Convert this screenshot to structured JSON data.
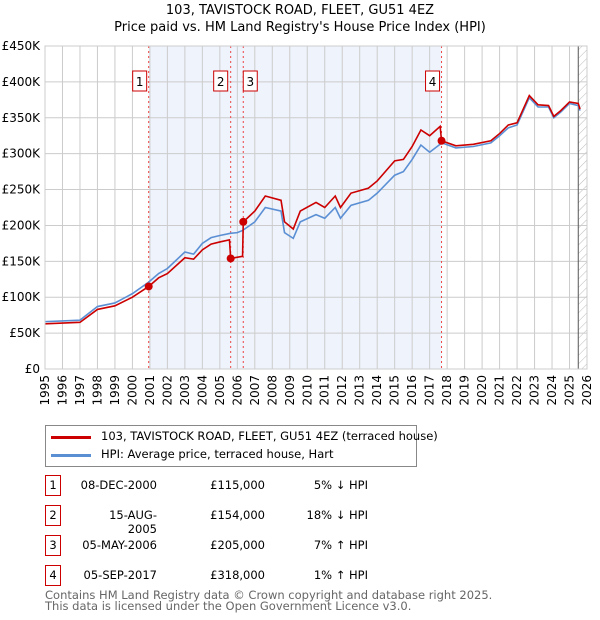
{
  "title_line1": "103, TAVISTOCK ROAD, FLEET, GU51 4EZ",
  "title_line2": "Price paid vs. HM Land Registry's House Price Index (HPI)",
  "chart_data": {
    "type": "line",
    "xlim": [
      1995,
      2026
    ],
    "ylim": [
      0,
      450000
    ],
    "x_ticks": [
      1995,
      1996,
      1997,
      1998,
      1999,
      2000,
      2001,
      2002,
      2003,
      2004,
      2005,
      2006,
      2007,
      2008,
      2009,
      2010,
      2011,
      2012,
      2013,
      2014,
      2015,
      2016,
      2017,
      2018,
      2019,
      2020,
      2021,
      2022,
      2023,
      2024,
      2025,
      2026
    ],
    "y_ticks": [
      {
        "v": 0,
        "label": "£0"
      },
      {
        "v": 50000,
        "label": "£50K"
      },
      {
        "v": 100000,
        "label": "£100K"
      },
      {
        "v": 150000,
        "label": "£150K"
      },
      {
        "v": 200000,
        "label": "£200K"
      },
      {
        "v": 250000,
        "label": "£250K"
      },
      {
        "v": 300000,
        "label": "£300K"
      },
      {
        "v": 350000,
        "label": "£350K"
      },
      {
        "v": 400000,
        "label": "£400K"
      },
      {
        "v": 450000,
        "label": "£450K"
      }
    ],
    "grid": true,
    "shaded_range": [
      2000.93,
      2017.68
    ],
    "forecast_hatch_from": 2025.5,
    "series": [
      {
        "name": "103, TAVISTOCK ROAD, FLEET, GU51 4EZ (terraced house)",
        "color": "#cc0000",
        "points": [
          [
            1995,
            63
          ],
          [
            1996,
            64
          ],
          [
            1997,
            65
          ],
          [
            1998,
            83
          ],
          [
            1999,
            88
          ],
          [
            2000,
            100
          ],
          [
            2000.93,
            115
          ],
          [
            2001.5,
            127
          ],
          [
            2002,
            133
          ],
          [
            2003,
            155
          ],
          [
            2003.5,
            153
          ],
          [
            2004,
            166
          ],
          [
            2004.5,
            174
          ],
          [
            2005,
            177
          ],
          [
            2005.55,
            180
          ],
          [
            2005.62,
            154
          ],
          [
            2006.3,
            157
          ],
          [
            2006.34,
            205
          ],
          [
            2007,
            220
          ],
          [
            2007.6,
            241
          ],
          [
            2008.5,
            235
          ],
          [
            2008.7,
            205
          ],
          [
            2009.2,
            195
          ],
          [
            2009.6,
            220
          ],
          [
            2010.5,
            232
          ],
          [
            2011,
            225
          ],
          [
            2011.6,
            241
          ],
          [
            2011.9,
            225
          ],
          [
            2012.5,
            245
          ],
          [
            2013.5,
            252
          ],
          [
            2014,
            262
          ],
          [
            2015,
            290
          ],
          [
            2015.5,
            292
          ],
          [
            2016,
            310
          ],
          [
            2016.5,
            333
          ],
          [
            2017,
            325
          ],
          [
            2017.6,
            338
          ],
          [
            2017.68,
            318
          ],
          [
            2018.5,
            311
          ],
          [
            2019.5,
            313
          ],
          [
            2020.5,
            318
          ],
          [
            2021,
            328
          ],
          [
            2021.5,
            340
          ],
          [
            2022,
            343
          ],
          [
            2022.7,
            381
          ],
          [
            2023.2,
            368
          ],
          [
            2023.8,
            367
          ],
          [
            2024.1,
            352
          ],
          [
            2024.5,
            360
          ],
          [
            2025,
            372
          ],
          [
            2025.5,
            370
          ],
          [
            2025.6,
            362
          ]
        ]
      },
      {
        "name": "HPI: Average price, terraced house, Hart",
        "color": "#5b8fd4",
        "points": [
          [
            1995,
            66
          ],
          [
            1996,
            67
          ],
          [
            1997,
            68
          ],
          [
            1998,
            87
          ],
          [
            1999,
            92
          ],
          [
            2000,
            105
          ],
          [
            2000.93,
            121
          ],
          [
            2001.5,
            133
          ],
          [
            2002,
            140
          ],
          [
            2003,
            163
          ],
          [
            2003.5,
            160
          ],
          [
            2004,
            175
          ],
          [
            2004.5,
            183
          ],
          [
            2005,
            186
          ],
          [
            2005.6,
            189
          ],
          [
            2006,
            190
          ],
          [
            2006.3,
            193
          ],
          [
            2007,
            205
          ],
          [
            2007.6,
            225
          ],
          [
            2008.5,
            220
          ],
          [
            2008.7,
            190
          ],
          [
            2009.2,
            182
          ],
          [
            2009.6,
            205
          ],
          [
            2010.5,
            215
          ],
          [
            2011,
            210
          ],
          [
            2011.6,
            225
          ],
          [
            2011.9,
            210
          ],
          [
            2012.5,
            228
          ],
          [
            2013.5,
            235
          ],
          [
            2014,
            245
          ],
          [
            2015,
            270
          ],
          [
            2015.5,
            275
          ],
          [
            2016,
            292
          ],
          [
            2016.5,
            312
          ],
          [
            2017,
            302
          ],
          [
            2017.7,
            315
          ],
          [
            2018.5,
            308
          ],
          [
            2019.5,
            310
          ],
          [
            2020.5,
            315
          ],
          [
            2021,
            325
          ],
          [
            2021.5,
            336
          ],
          [
            2022,
            340
          ],
          [
            2022.7,
            378
          ],
          [
            2023.2,
            365
          ],
          [
            2023.8,
            365
          ],
          [
            2024.1,
            350
          ],
          [
            2024.5,
            358
          ],
          [
            2025,
            370
          ],
          [
            2025.5,
            367
          ],
          [
            2025.6,
            360
          ]
        ]
      }
    ],
    "sales": [
      {
        "n": "1",
        "x": 2000.93,
        "price": 115000,
        "date": "08-DEC-2000",
        "price_label": "£115,000",
        "hpi": "5% ↓ HPI"
      },
      {
        "n": "2",
        "x": 2005.62,
        "price": 154000,
        "date": "15-AUG-2005",
        "price_label": "£154,000",
        "hpi": "18% ↓ HPI"
      },
      {
        "n": "3",
        "x": 2006.34,
        "price": 205000,
        "date": "05-MAY-2006",
        "price_label": "£205,000",
        "hpi": "7% ↑ HPI"
      },
      {
        "n": "4",
        "x": 2017.68,
        "price": 318000,
        "date": "05-SEP-2017",
        "price_label": "£318,000",
        "hpi": "1% ↑ HPI"
      }
    ]
  },
  "legend": {
    "red": "103, TAVISTOCK ROAD, FLEET, GU51 4EZ (terraced house)",
    "blue": "HPI: Average price, terraced house, Hart"
  },
  "footer1": "Contains HM Land Registry data © Crown copyright and database right 2025.",
  "footer2": "This data is licensed under the Open Government Licence v3.0."
}
